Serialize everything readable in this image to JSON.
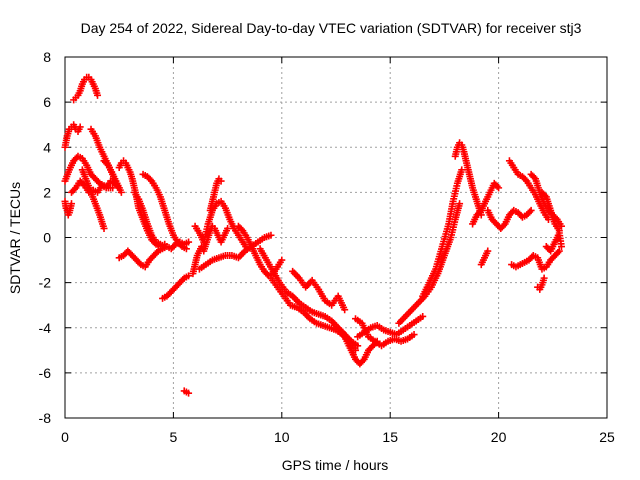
{
  "chart_data": {
    "type": "scatter",
    "title": "Day 254 of 2022, Sidereal Day-to-day VTEC variation (SDTVAR) for receiver stj3",
    "xlabel": "GPS time / hours",
    "ylabel": "SDTVAR / TECUs",
    "xlim": [
      0,
      25
    ],
    "ylim": [
      -8,
      8
    ],
    "xticks": [
      0,
      5,
      10,
      15,
      20,
      25
    ],
    "yticks": [
      -8,
      -6,
      -4,
      -2,
      0,
      2,
      4,
      6,
      8
    ],
    "grid": true,
    "marker": "+",
    "color": "#ff0000",
    "segments": [
      {
        "name": "early-drop",
        "x": [
          0.0,
          0.05,
          0.1,
          0.15,
          0.2,
          0.25,
          0.3
        ],
        "y": [
          1.6,
          1.3,
          1.2,
          1.0,
          1.1,
          1.3,
          1.5
        ]
      },
      {
        "name": "early-rise",
        "x": [
          0.0,
          0.1,
          0.2,
          0.3,
          0.4,
          0.5,
          0.6,
          0.7
        ],
        "y": [
          4.0,
          4.5,
          4.8,
          4.9,
          5.0,
          4.8,
          4.7,
          4.9
        ]
      },
      {
        "name": "peak-arc",
        "x": [
          0.4,
          0.5,
          0.6,
          0.7,
          0.8,
          0.9,
          1.0,
          1.1,
          1.2,
          1.3,
          1.4,
          1.5
        ],
        "y": [
          6.1,
          6.2,
          6.3,
          6.5,
          6.8,
          7.0,
          7.1,
          7.1,
          7.0,
          6.8,
          6.6,
          6.3
        ]
      },
      {
        "name": "band-a",
        "x": [
          0.0,
          0.2,
          0.4,
          0.6,
          0.8,
          1.0,
          1.2,
          1.4,
          1.6,
          1.8,
          2.0,
          2.2
        ],
        "y": [
          2.5,
          3.0,
          3.4,
          3.6,
          3.5,
          3.2,
          2.8,
          2.6,
          2.4,
          2.3,
          2.2,
          2.2
        ]
      },
      {
        "name": "band-b",
        "x": [
          0.3,
          0.5,
          0.7,
          0.9,
          1.1,
          1.3,
          1.5,
          1.7,
          1.9,
          2.1,
          2.3,
          2.5
        ],
        "y": [
          2.0,
          2.2,
          2.5,
          2.3,
          2.0,
          2.1,
          2.0,
          2.3,
          2.2,
          2.5,
          2.4,
          2.2
        ]
      },
      {
        "name": "descent-a",
        "x": [
          0.8,
          1.0,
          1.2,
          1.4,
          1.6,
          1.8
        ],
        "y": [
          3.0,
          2.5,
          2.0,
          1.5,
          1.0,
          0.4
        ]
      },
      {
        "name": "descent-b",
        "x": [
          1.2,
          1.4,
          1.6,
          1.8,
          2.0,
          2.2,
          2.4
        ],
        "y": [
          4.8,
          4.5,
          4.0,
          3.6,
          3.2,
          2.8,
          2.3
        ]
      },
      {
        "name": "descent-c",
        "x": [
          1.8,
          2.0,
          2.2,
          2.4,
          2.6
        ],
        "y": [
          3.4,
          3.2,
          2.8,
          2.4,
          2.0
        ]
      },
      {
        "name": "hump-a",
        "x": [
          2.5,
          2.6,
          2.7,
          2.8,
          2.9,
          3.0,
          3.1,
          3.2,
          3.3,
          3.4,
          3.6,
          3.8,
          4.0,
          4.2,
          4.4,
          4.6
        ],
        "y": [
          3.1,
          3.3,
          3.4,
          3.3,
          3.1,
          2.9,
          2.6,
          2.2,
          1.8,
          1.3,
          0.8,
          0.3,
          -0.1,
          -0.3,
          -0.4,
          -0.3
        ]
      },
      {
        "name": "hump-b",
        "x": [
          3.2,
          3.4,
          3.6,
          3.8,
          4.0,
          4.2,
          4.4
        ],
        "y": [
          2.0,
          1.7,
          1.2,
          0.6,
          0.1,
          -0.2,
          -0.3
        ]
      },
      {
        "name": "hump-c",
        "x": [
          3.6,
          3.8,
          4.0,
          4.2,
          4.4,
          4.6,
          4.8,
          5.0,
          5.2,
          5.4,
          5.6
        ],
        "y": [
          2.8,
          2.7,
          2.5,
          2.2,
          1.8,
          1.2,
          0.6,
          0.1,
          -0.2,
          -0.4,
          -0.5
        ]
      },
      {
        "name": "low-band",
        "x": [
          2.5,
          2.7,
          2.9,
          3.1,
          3.3,
          3.5,
          3.7,
          3.9,
          4.1,
          4.3,
          4.5,
          4.7,
          4.9,
          5.1,
          5.3,
          5.5,
          5.7
        ],
        "y": [
          -0.9,
          -0.8,
          -0.6,
          -0.8,
          -1.0,
          -1.2,
          -1.3,
          -1.0,
          -0.8,
          -0.6,
          -0.5,
          -0.4,
          -0.5,
          -0.3,
          -0.2,
          -0.3,
          -0.2
        ]
      },
      {
        "name": "slope-segment",
        "x": [
          4.5,
          4.7,
          4.9,
          5.1,
          5.3,
          5.5,
          5.7
        ],
        "y": [
          -2.7,
          -2.6,
          -2.4,
          -2.2,
          -2.0,
          -1.8,
          -1.7
        ]
      },
      {
        "name": "outlier",
        "x": [
          5.5,
          5.6,
          5.7
        ],
        "y": [
          -6.8,
          -6.85,
          -6.9
        ]
      },
      {
        "name": "cluster-a",
        "x": [
          5.9,
          6.0,
          6.1,
          6.2,
          6.3,
          6.4,
          6.5,
          6.6,
          6.7,
          6.8,
          6.9,
          7.0,
          7.1,
          7.2,
          7.3,
          7.4,
          7.5
        ],
        "y": [
          -1.6,
          -1.2,
          -0.8,
          -0.6,
          -0.4,
          -0.6,
          -0.3,
          0.0,
          0.3,
          0.5,
          0.4,
          0.2,
          0.0,
          -0.2,
          0.0,
          0.2,
          0.4
        ]
      },
      {
        "name": "cluster-b",
        "x": [
          6.0,
          6.2,
          6.4,
          6.6,
          6.8,
          7.0,
          7.2,
          7.4,
          7.6,
          7.8,
          8.0,
          8.2,
          8.4
        ],
        "y": [
          0.5,
          0.2,
          -0.2,
          0.6,
          1.2,
          1.5,
          1.6,
          1.3,
          0.8,
          0.4,
          0.1,
          -0.2,
          -0.5
        ]
      },
      {
        "name": "spike",
        "x": [
          6.7,
          6.8,
          6.9,
          7.0,
          7.1,
          7.2
        ],
        "y": [
          1.2,
          1.6,
          2.0,
          2.4,
          2.6,
          2.5
        ]
      },
      {
        "name": "cluster-c",
        "x": [
          6.2,
          6.5,
          6.8,
          7.1,
          7.4,
          7.7,
          8.0,
          8.3,
          8.6,
          8.9,
          9.2,
          9.5
        ],
        "y": [
          -1.4,
          -1.2,
          -1.0,
          -0.9,
          -0.8,
          -0.8,
          -0.9,
          -0.6,
          -0.4,
          -0.2,
          0.0,
          0.1
        ]
      },
      {
        "name": "cluster-d",
        "x": [
          8.0,
          8.2,
          8.4,
          8.6,
          8.8,
          9.0,
          9.2,
          9.4,
          9.6,
          9.8,
          10.0
        ],
        "y": [
          0.5,
          0.3,
          0.0,
          -0.4,
          -0.8,
          -1.2,
          -1.5,
          -1.7,
          -1.6,
          -1.3,
          -1.0
        ]
      },
      {
        "name": "midday-a",
        "x": [
          9.0,
          9.3,
          9.6,
          9.9,
          10.2,
          10.5,
          10.8,
          11.1,
          11.4,
          11.7,
          12.0,
          12.3,
          12.6,
          12.9,
          13.2,
          13.5
        ],
        "y": [
          -0.5,
          -1.0,
          -1.5,
          -2.0,
          -2.4,
          -2.6,
          -2.9,
          -3.1,
          -3.3,
          -3.4,
          -3.5,
          -3.7,
          -4.0,
          -4.3,
          -4.6,
          -4.8
        ]
      },
      {
        "name": "midday-b",
        "x": [
          9.5,
          9.8,
          10.1,
          10.4,
          10.7,
          11.0,
          11.3,
          11.6,
          11.9,
          12.2,
          12.5,
          12.8,
          13.1,
          13.4
        ],
        "y": [
          -1.8,
          -2.2,
          -2.6,
          -3.0,
          -3.1,
          -3.3,
          -3.6,
          -3.8,
          -3.9,
          -4.0,
          -4.1,
          -4.3,
          -4.6,
          -5.0
        ]
      },
      {
        "name": "midday-c",
        "x": [
          10.5,
          10.8,
          11.1,
          11.4,
          11.7,
          12.0,
          12.3,
          12.6,
          12.9
        ],
        "y": [
          -1.5,
          -1.8,
          -2.2,
          -1.9,
          -2.3,
          -2.8,
          -3.0,
          -2.6,
          -3.2
        ]
      },
      {
        "name": "trough",
        "x": [
          12.8,
          13.0,
          13.2,
          13.4,
          13.6,
          13.8,
          14.0,
          14.2,
          14.4
        ],
        "y": [
          -4.2,
          -4.6,
          -5.0,
          -5.4,
          -5.6,
          -5.4,
          -5.0,
          -4.8,
          -4.6
        ]
      },
      {
        "name": "trough-band",
        "x": [
          13.5,
          13.8,
          14.1,
          14.4,
          14.7,
          15.0,
          15.3,
          15.6,
          15.9,
          16.2,
          16.5
        ],
        "y": [
          -4.4,
          -4.2,
          -4.0,
          -3.9,
          -4.1,
          -4.2,
          -4.3,
          -4.1,
          -3.9,
          -3.7,
          -3.5
        ]
      },
      {
        "name": "trough-band-b",
        "x": [
          13.4,
          13.7,
          14.0,
          14.3,
          14.6,
          14.9,
          15.2,
          15.5,
          15.8,
          16.1
        ],
        "y": [
          -3.6,
          -3.8,
          -4.4,
          -4.6,
          -4.8,
          -4.6,
          -4.5,
          -4.6,
          -4.5,
          -4.3
        ]
      },
      {
        "name": "recovery-a",
        "x": [
          15.4,
          15.7,
          16.0,
          16.3,
          16.6,
          16.9,
          17.2,
          17.5,
          17.8,
          18.0,
          18.2
        ],
        "y": [
          -3.8,
          -3.5,
          -3.2,
          -2.9,
          -2.6,
          -2.2,
          -1.6,
          -0.8,
          0.0,
          0.8,
          1.5
        ]
      },
      {
        "name": "recovery-b",
        "x": [
          16.5,
          16.8,
          17.1,
          17.4,
          17.7,
          17.9,
          18.1,
          18.3
        ],
        "y": [
          -2.6,
          -2.0,
          -1.4,
          -0.4,
          0.6,
          1.6,
          2.4,
          3.0
        ]
      },
      {
        "name": "peak-2",
        "x": [
          18.0,
          18.1,
          18.2,
          18.3,
          18.4,
          18.5,
          18.6,
          18.7,
          18.8,
          19.0,
          19.2
        ],
        "y": [
          3.6,
          4.0,
          4.2,
          4.1,
          3.8,
          3.4,
          3.0,
          2.6,
          2.2,
          1.6,
          1.0
        ]
      },
      {
        "name": "post-peak",
        "x": [
          18.8,
          19.0,
          19.2,
          19.4,
          19.6,
          19.8,
          20.0
        ],
        "y": [
          0.6,
          1.0,
          1.2,
          1.6,
          2.0,
          2.4,
          2.2
        ]
      },
      {
        "name": "dip-2",
        "x": [
          19.2,
          19.3,
          19.4,
          19.5
        ],
        "y": [
          -1.2,
          -1.0,
          -0.8,
          -0.6
        ]
      },
      {
        "name": "late-band",
        "x": [
          19.5,
          19.7,
          19.9,
          20.1,
          20.3,
          20.5,
          20.7,
          20.9,
          21.1,
          21.3,
          21.5
        ],
        "y": [
          1.2,
          0.8,
          0.6,
          0.4,
          0.6,
          1.0,
          1.2,
          1.1,
          0.9,
          1.0,
          1.2
        ]
      },
      {
        "name": "late-peak",
        "x": [
          20.5,
          20.7,
          20.9,
          21.1,
          21.3,
          21.5,
          21.7,
          21.9,
          22.1,
          22.3
        ],
        "y": [
          3.4,
          3.1,
          2.8,
          2.7,
          2.5,
          2.2,
          1.9,
          1.5,
          1.1,
          0.8
        ]
      },
      {
        "name": "late-lows",
        "x": [
          20.6,
          20.8,
          21.0,
          21.2,
          21.4,
          21.6,
          21.8,
          22.0,
          22.2,
          22.4,
          22.6,
          22.8
        ],
        "y": [
          -1.2,
          -1.3,
          -1.2,
          -1.1,
          -1.0,
          -0.8,
          -0.9,
          -1.4,
          -1.3,
          -1.0,
          -0.8,
          -0.6
        ]
      },
      {
        "name": "late-high",
        "x": [
          21.5,
          21.7,
          21.9,
          22.1,
          22.3,
          22.5,
          22.7,
          22.9
        ],
        "y": [
          2.8,
          2.6,
          2.0,
          1.5,
          1.2,
          1.0,
          0.8,
          0.5
        ]
      },
      {
        "name": "late-high-b",
        "x": [
          22.0,
          22.2,
          22.4,
          22.6,
          22.8
        ],
        "y": [
          2.0,
          1.8,
          1.2,
          0.6,
          0.3
        ]
      },
      {
        "name": "late-dip",
        "x": [
          21.8,
          21.9,
          22.0,
          22.1
        ],
        "y": [
          -2.2,
          -2.3,
          -2.1,
          -1.8
        ]
      },
      {
        "name": "late-tail",
        "x": [
          22.2,
          22.4,
          22.6,
          22.8,
          22.9
        ],
        "y": [
          -0.4,
          -0.6,
          -0.2,
          0.2,
          -0.4
        ]
      }
    ]
  }
}
